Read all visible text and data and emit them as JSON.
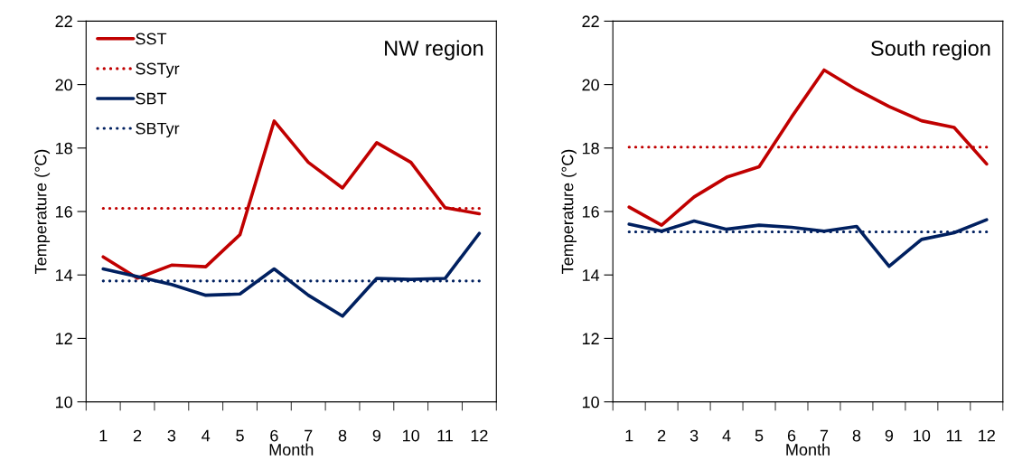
{
  "chart_data": [
    {
      "type": "line",
      "title": "NW region",
      "xlabel": "Month",
      "ylabel": "Temperature (°C)",
      "categories": [
        "1",
        "2",
        "3",
        "4",
        "5",
        "6",
        "7",
        "8",
        "9",
        "10",
        "11",
        "12"
      ],
      "ylim": [
        10,
        22
      ],
      "yticks": [
        10,
        12,
        14,
        16,
        18,
        20,
        22
      ],
      "grid": false,
      "legend": "top left",
      "marker": "none",
      "series": [
        {
          "name": "SST",
          "color": "#c00000",
          "line_style": "solid",
          "values": [
            14.57,
            13.9,
            14.31,
            14.26,
            15.27,
            18.85,
            17.55,
            16.74,
            18.17,
            17.55,
            16.12,
            15.93
          ]
        },
        {
          "name": "SSTyr",
          "color": "#c00000",
          "line_style": "dotted",
          "values": [
            16.1,
            16.1,
            16.1,
            16.1,
            16.1,
            16.1,
            16.1,
            16.1,
            16.1,
            16.1,
            16.1,
            16.1
          ]
        },
        {
          "name": "SBT",
          "color": "#002060",
          "line_style": "solid",
          "values": [
            14.19,
            13.95,
            13.7,
            13.36,
            13.4,
            14.19,
            13.36,
            12.7,
            13.89,
            13.86,
            13.89,
            15.31
          ]
        },
        {
          "name": "SBTyr",
          "color": "#002060",
          "line_style": "dotted",
          "values": [
            13.81,
            13.81,
            13.81,
            13.81,
            13.81,
            13.81,
            13.81,
            13.81,
            13.81,
            13.81,
            13.81,
            13.81
          ]
        }
      ]
    },
    {
      "type": "line",
      "title": "South region",
      "xlabel": "Month",
      "ylabel": "Temperature (°C)",
      "categories": [
        "1",
        "2",
        "3",
        "4",
        "5",
        "6",
        "7",
        "8",
        "9",
        "10",
        "11",
        "12"
      ],
      "ylim": [
        10,
        22
      ],
      "yticks": [
        10,
        12,
        14,
        16,
        18,
        20,
        22
      ],
      "grid": false,
      "marker": "none",
      "series": [
        {
          "color": "#c00000",
          "line_style": "solid",
          "values": [
            16.14,
            15.57,
            16.46,
            17.08,
            17.41,
            18.98,
            20.46,
            19.84,
            19.31,
            18.86,
            18.65,
            17.5
          ]
        },
        {
          "color": "#c00000",
          "line_style": "dotted",
          "values": [
            18.03,
            18.03,
            18.03,
            18.03,
            18.03,
            18.03,
            18.03,
            18.03,
            18.03,
            18.03,
            18.03,
            18.03
          ]
        },
        {
          "color": "#002060",
          "line_style": "solid",
          "values": [
            15.6,
            15.38,
            15.7,
            15.44,
            15.57,
            15.5,
            15.38,
            15.53,
            14.27,
            15.12,
            15.33,
            15.74
          ]
        },
        {
          "color": "#002060",
          "line_style": "dotted",
          "values": [
            15.36,
            15.36,
            15.36,
            15.36,
            15.36,
            15.36,
            15.36,
            15.36,
            15.36,
            15.36,
            15.36,
            15.36
          ]
        }
      ]
    }
  ]
}
